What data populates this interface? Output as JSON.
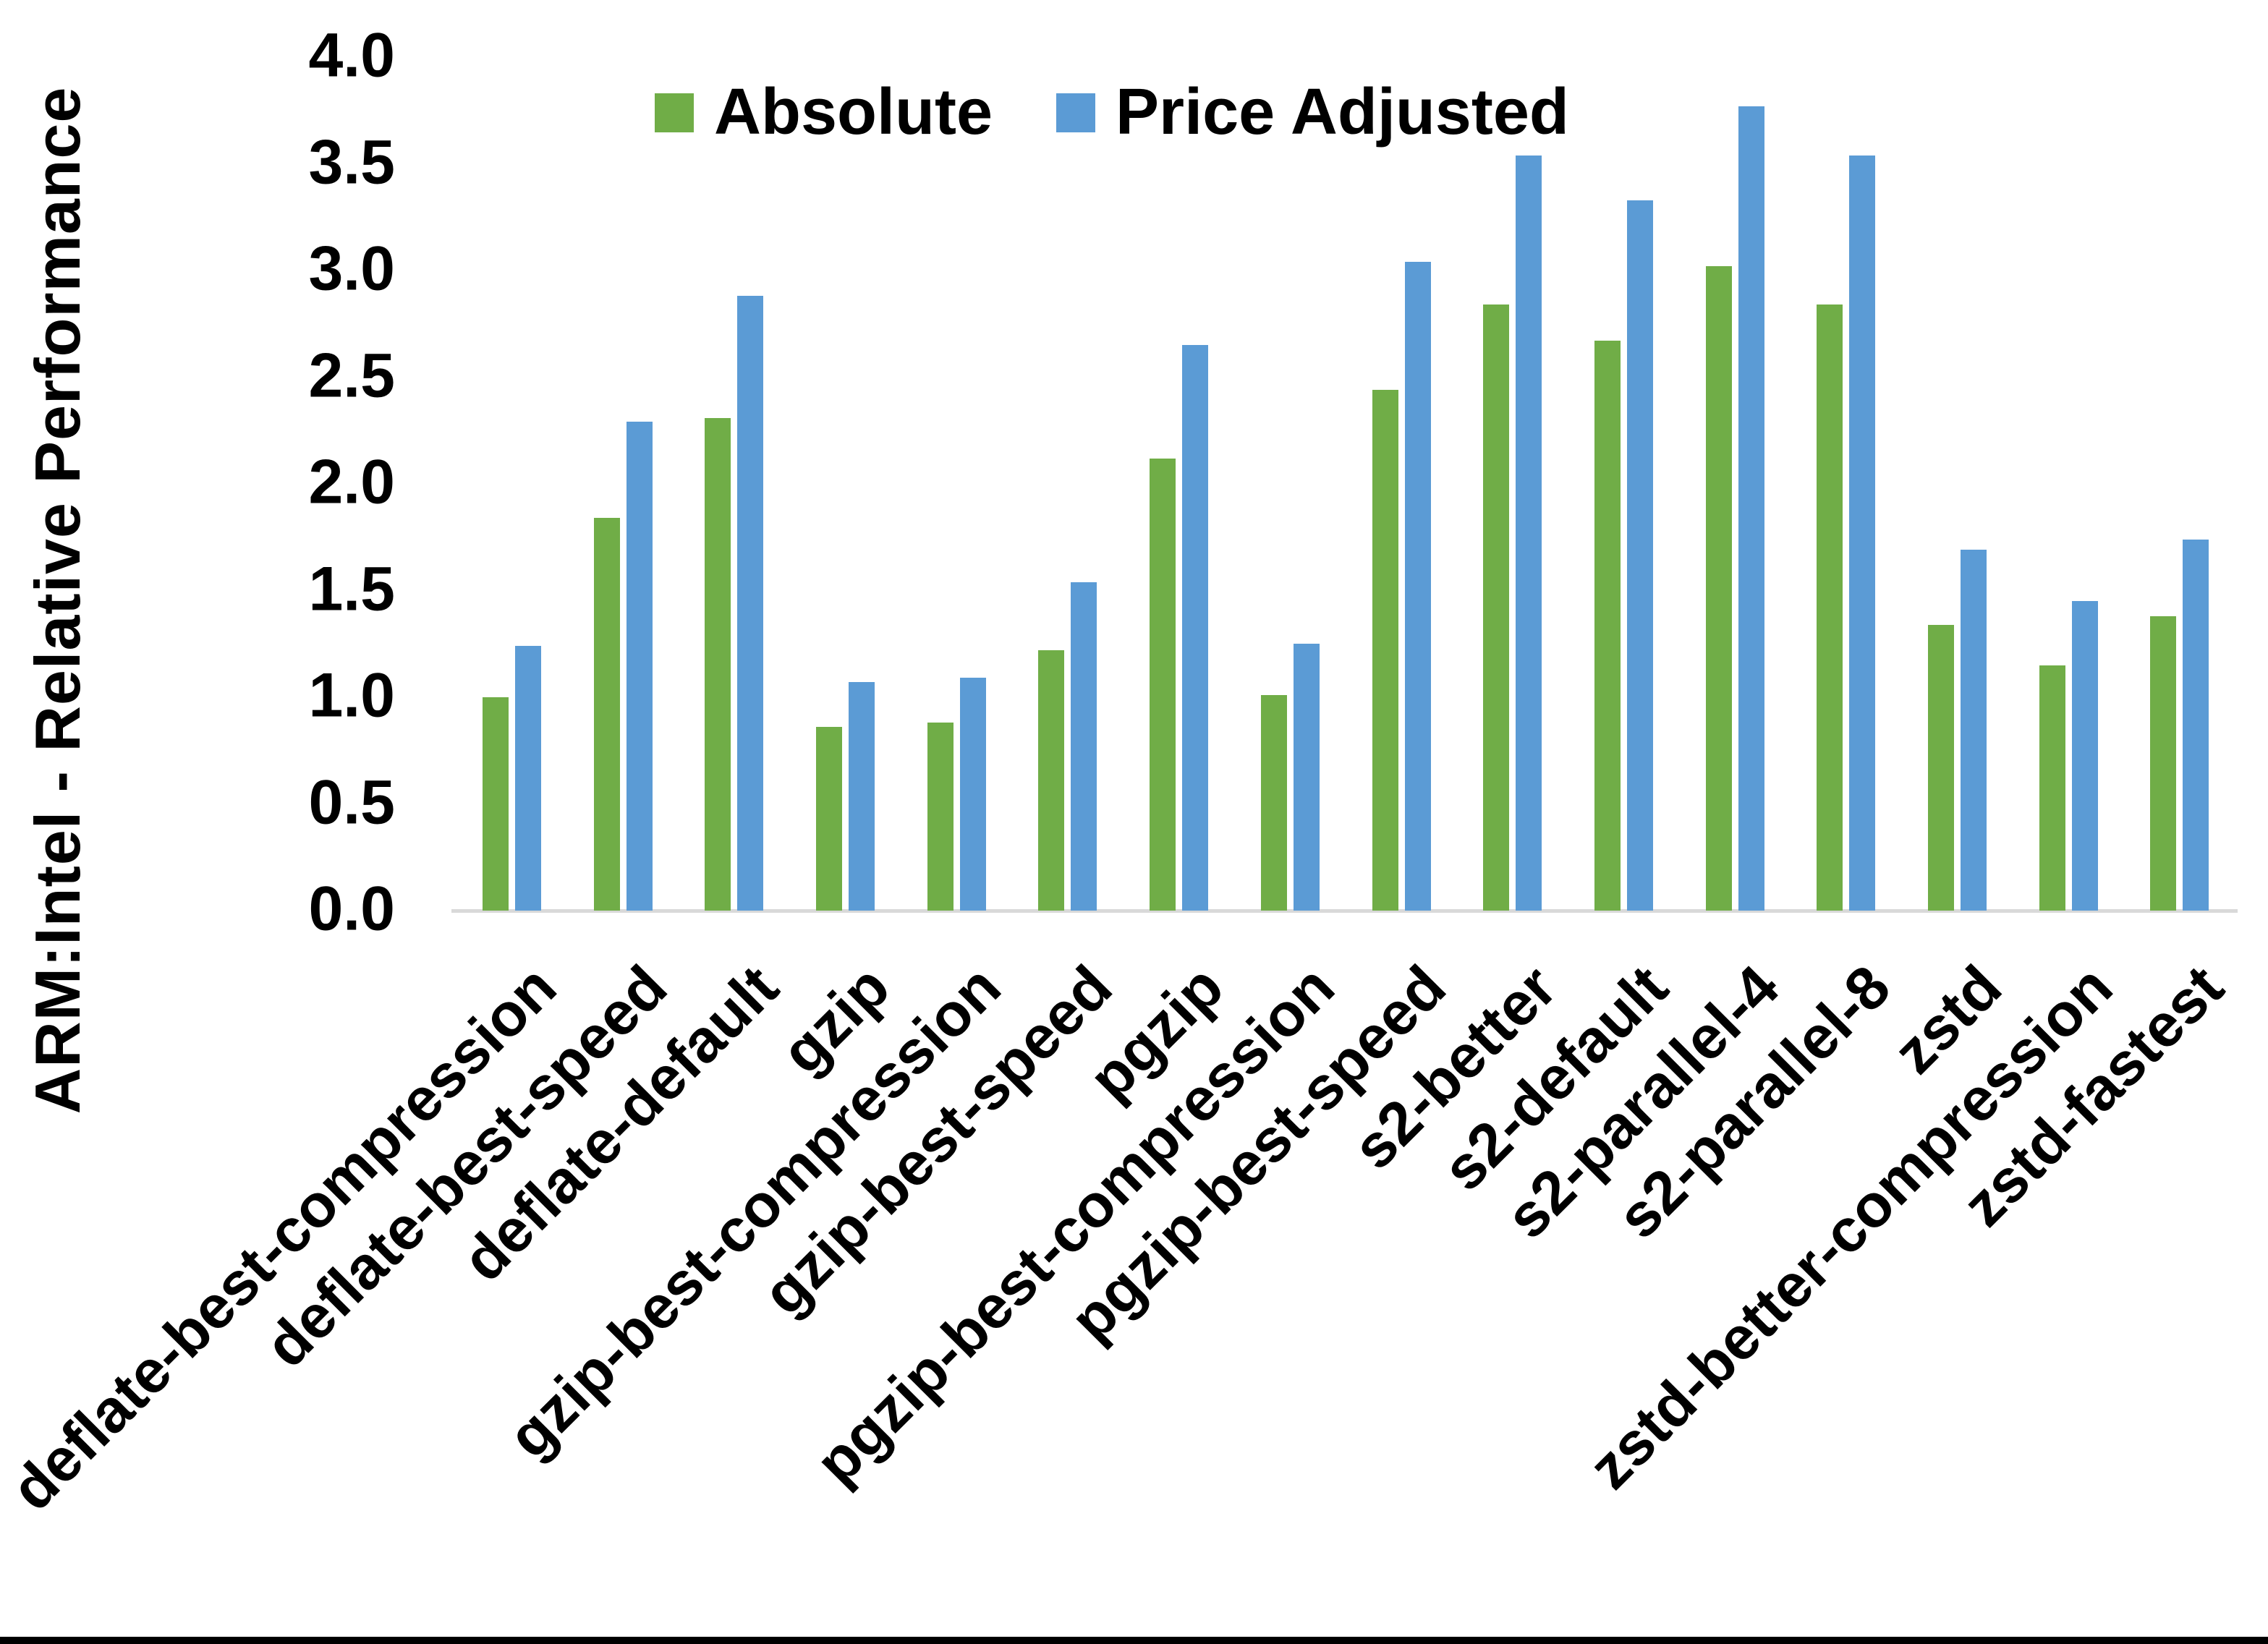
{
  "page": {
    "background": "#FFFFFF",
    "bottom_bar_color": "#000000"
  },
  "chart_data": {
    "type": "bar",
    "title": "",
    "xlabel": "",
    "ylabel": "ARM:Intel - Relative Performance",
    "ylim": [
      0,
      4.0
    ],
    "ytick_step": 0.5,
    "ytick_labels": [
      "0.0",
      "0.5",
      "1.0",
      "1.5",
      "2.0",
      "2.5",
      "3.0",
      "3.5",
      "4.0"
    ],
    "grid": false,
    "legend_position": "top-center",
    "axis_line_color": "#D9D9D9",
    "text_color": "#000000",
    "categories": [
      "deflate-best-compression",
      "deflate-best-speed",
      "deflate-default",
      "gzip",
      "gzip-best-compression",
      "gzip-best-speed",
      "pgzip",
      "pgzip-best-compression",
      "pgzip-best-speed",
      "s2-better",
      "s2-default",
      "s2-parallel-4",
      "s2-parallel-8",
      "zstd",
      "zstd-better-compression",
      "zstd-fastest"
    ],
    "series": [
      {
        "name": "Absolute",
        "color": "#70AD47",
        "values": [
          1.0,
          1.84,
          2.31,
          0.86,
          0.88,
          1.22,
          2.12,
          1.01,
          2.44,
          2.84,
          2.67,
          3.02,
          2.84,
          1.34,
          1.15,
          1.38
        ]
      },
      {
        "name": "Price Adjusted",
        "color": "#5B9BD5",
        "values": [
          1.24,
          2.29,
          2.88,
          1.07,
          1.09,
          1.54,
          2.65,
          1.25,
          3.04,
          3.54,
          3.33,
          3.77,
          3.54,
          1.69,
          1.45,
          1.74
        ]
      }
    ]
  }
}
